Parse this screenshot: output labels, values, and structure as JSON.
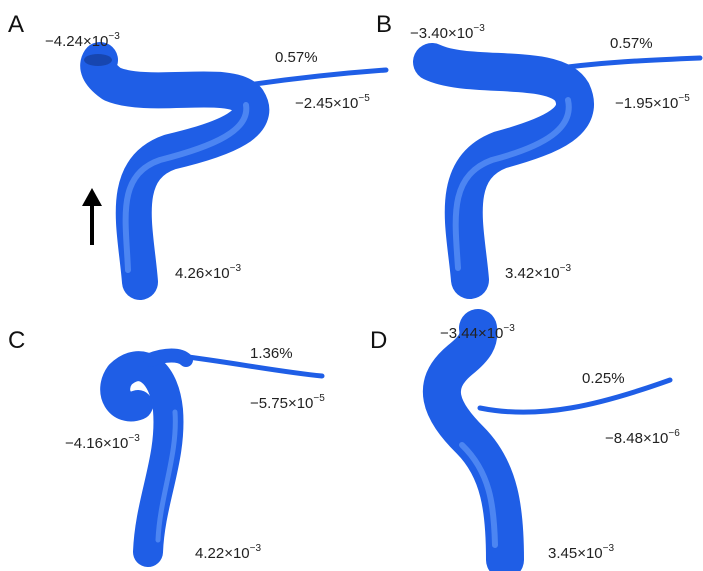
{
  "panels": [
    {
      "letter": "A",
      "labels": [
        {
          "base": "−4.24×10",
          "exp": "−3"
        },
        {
          "text": "0.57%"
        },
        {
          "base": "−2.45×10",
          "exp": "−5"
        },
        {
          "base": "4.26×10",
          "exp": "−3"
        }
      ]
    },
    {
      "letter": "B",
      "labels": [
        {
          "base": "−3.40×10",
          "exp": "−3"
        },
        {
          "text": "0.57%"
        },
        {
          "base": "−1.95×10",
          "exp": "−5"
        },
        {
          "base": "3.42×10",
          "exp": "−3"
        }
      ]
    },
    {
      "letter": "C",
      "labels": [
        {
          "text": "1.36%"
        },
        {
          "base": "−5.75×10",
          "exp": "−5"
        },
        {
          "base": "−4.16×10",
          "exp": "−3"
        },
        {
          "base": "4.22×10",
          "exp": "−3"
        }
      ]
    },
    {
      "letter": "D",
      "labels": [
        {
          "base": "−3.44×10",
          "exp": "−3"
        },
        {
          "text": "0.25%"
        },
        {
          "base": "−8.48×10",
          "exp": "−6"
        },
        {
          "base": "3.45×10",
          "exp": "−3"
        }
      ]
    }
  ]
}
